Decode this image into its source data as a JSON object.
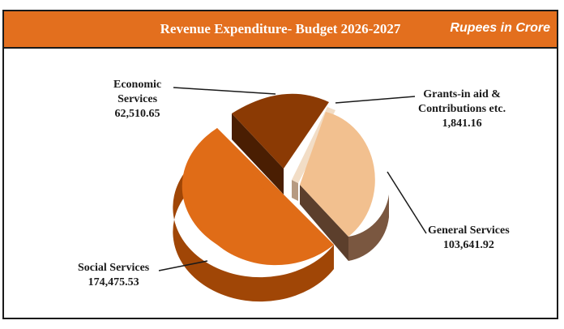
{
  "header": {
    "title": "Revenue Expenditure- Budget 2026-2027",
    "unit": "Rupees in Crore"
  },
  "chart_data": {
    "type": "pie",
    "title": "Revenue Expenditure- Budget 2026-2027",
    "unit": "Rupees in Crore",
    "labels": [
      "Economic Services",
      "Grants-in aid & Contributions etc.",
      "General Services",
      "Social Services"
    ],
    "values": [
      62510.65,
      1841.16,
      103641.92,
      174475.53
    ],
    "value_labels": [
      "62,510.65",
      "1,841.16",
      "103,641.92",
      "174,475.53"
    ],
    "label_lines": [
      [
        "Economic",
        "Services"
      ],
      [
        "Grants-in aid &",
        "Contributions etc."
      ],
      [
        "General Services"
      ],
      [
        "Social Services"
      ]
    ],
    "colors": {
      "economic": {
        "top": "#8b3a04",
        "side": "#4a1e02"
      },
      "grants": {
        "top": "#f2ddc6",
        "side": "#b69a81"
      },
      "general": {
        "top": "#f2c08f",
        "side": "#7a5740"
      },
      "social": {
        "top": "#e06c17",
        "side": "#a04606"
      }
    },
    "style": "3d-exploded"
  }
}
